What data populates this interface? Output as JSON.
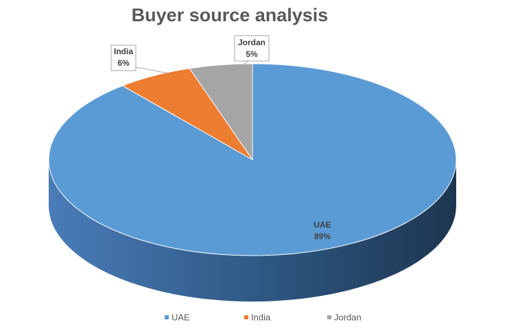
{
  "chart_data": {
    "type": "pie",
    "title": "Buyer source analysis",
    "categories": [
      "UAE",
      "India",
      "Jordan"
    ],
    "values": [
      89,
      6,
      5
    ],
    "value_labels": [
      "89%",
      "6%",
      "5%"
    ],
    "colors": [
      "#5b9bd5",
      "#ed7d31",
      "#a5a5a5"
    ],
    "three_d": true,
    "legend": "bottom"
  }
}
